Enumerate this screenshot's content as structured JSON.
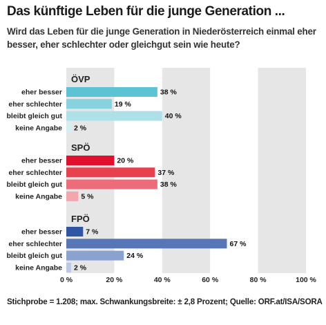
{
  "title": "Das künftige Leben für die junge Generation ...",
  "subtitle": "Wird das Leben für die junge Generation in Niederösterreich einmal eher besser, eher schlechter oder gleichgut sein wie heute?",
  "footnote": "Stichprobe = 1.208; max. Schwankungsbreite: ± 2,8 Prozent; Quelle: ORF.at/ISA/SORA",
  "chart_data": {
    "type": "bar",
    "orientation": "horizontal",
    "xlim": [
      0,
      100
    ],
    "ticks": [
      0,
      20,
      40,
      60,
      80,
      100
    ],
    "tick_labels": [
      "0 %",
      "20 %",
      "40 %",
      "60 %",
      "80 %",
      "100 %"
    ],
    "grid": "alternating vertical bands",
    "categories": [
      "eher besser",
      "eher schlechter",
      "bleibt gleich gut",
      "keine Angabe"
    ],
    "groups": [
      {
        "name": "ÖVP",
        "values": [
          38,
          19,
          40,
          2
        ],
        "labels": [
          "38 %",
          "19 %",
          "40 %",
          "2 %"
        ],
        "colors": [
          "#5bc3d3",
          "#86d2dd",
          "#aee0e8",
          "#d3eff3"
        ]
      },
      {
        "name": "SPÖ",
        "values": [
          20,
          37,
          38,
          5
        ],
        "labels": [
          "20 %",
          "37 %",
          "38 %",
          "5 %"
        ],
        "colors": [
          "#e0102e",
          "#e7404f",
          "#ee6b79",
          "#f4a6ae"
        ]
      },
      {
        "name": "FPÖ",
        "values": [
          7,
          67,
          24,
          2
        ],
        "labels": [
          "7 %",
          "67 %",
          "24 %",
          "2 %"
        ],
        "colors": [
          "#2f56a3",
          "#5676b6",
          "#8aa2cf",
          "#bcc9e3"
        ]
      }
    ]
  }
}
